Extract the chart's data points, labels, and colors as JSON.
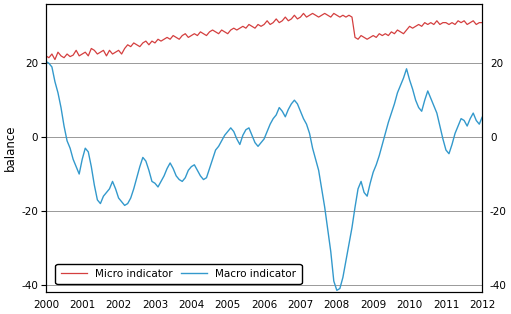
{
  "title": "",
  "ylabel_left": "balance",
  "micro_color": "#d43f3f",
  "macro_color": "#3399cc",
  "xlim": [
    2000.0,
    2012.0
  ],
  "ylim": [
    -42,
    36
  ],
  "yticks": [
    -40,
    -20,
    0,
    20
  ],
  "xticks": [
    2000,
    2001,
    2002,
    2003,
    2004,
    2005,
    2006,
    2007,
    2008,
    2009,
    2010,
    2011,
    2012
  ],
  "grid_color": "#999999",
  "legend_labels": [
    "Micro indicator",
    "Macro indicator"
  ],
  "micro_base": [
    22.0,
    21.5,
    22.5,
    21.0,
    23.0,
    22.0,
    21.5,
    22.5,
    21.8,
    22.2,
    23.5,
    22.0,
    22.5,
    23.0,
    22.0,
    24.0,
    23.5,
    22.5,
    23.0,
    23.5,
    22.0,
    23.5,
    22.5,
    23.0,
    23.5,
    22.5,
    24.0,
    25.0,
    24.5,
    25.5,
    25.0,
    24.5,
    25.5,
    26.0,
    25.0,
    26.0,
    25.5,
    26.5,
    26.0,
    26.5,
    27.0,
    26.5,
    27.5,
    27.0,
    26.5,
    27.5,
    28.0,
    27.0,
    27.5,
    28.0,
    27.5,
    28.5,
    28.0,
    27.5,
    28.5,
    29.0,
    28.5,
    28.0,
    29.0,
    28.5,
    28.0,
    29.0,
    29.5,
    29.0,
    29.5,
    30.0,
    29.5,
    30.5,
    30.0,
    29.5,
    30.5,
    30.0,
    30.5,
    31.5,
    30.5,
    31.0,
    32.0,
    31.0,
    31.5,
    32.5,
    31.5,
    32.0,
    33.0,
    32.0,
    32.5,
    33.5,
    32.5,
    33.0,
    33.5,
    33.0,
    32.5,
    33.0,
    33.5,
    33.0,
    32.5,
    33.5,
    33.0,
    32.5,
    33.0,
    32.5,
    33.0,
    32.5,
    27.0,
    26.5,
    27.5,
    27.0,
    26.5,
    27.0,
    27.5,
    27.0,
    28.0,
    27.5,
    28.0,
    27.5,
    28.5,
    28.0,
    29.0,
    28.5,
    28.0,
    29.0,
    30.0,
    29.5,
    30.0,
    30.5,
    30.0,
    31.0,
    30.5,
    31.0,
    30.5,
    31.5,
    30.5,
    31.0,
    31.0,
    30.5,
    31.0,
    30.5,
    31.5,
    31.0,
    31.5,
    30.5,
    31.0,
    31.5,
    30.5,
    31.0,
    31.0,
    31.5,
    30.5,
    31.0,
    31.5,
    30.5
  ],
  "macro_data": [
    20.5,
    20.0,
    19.0,
    15.0,
    12.0,
    8.0,
    3.0,
    -1.0,
    -3.0,
    -6.0,
    -8.0,
    -10.0,
    -6.0,
    -3.0,
    -4.0,
    -8.0,
    -13.0,
    -17.0,
    -18.0,
    -16.0,
    -15.0,
    -14.0,
    -12.0,
    -14.0,
    -16.5,
    -17.5,
    -18.5,
    -18.0,
    -16.5,
    -14.0,
    -11.0,
    -8.0,
    -5.5,
    -6.5,
    -9.0,
    -12.0,
    -12.5,
    -13.5,
    -12.0,
    -10.5,
    -8.5,
    -7.0,
    -8.5,
    -10.5,
    -11.5,
    -12.0,
    -11.0,
    -9.0,
    -8.0,
    -7.5,
    -9.0,
    -10.5,
    -11.5,
    -11.0,
    -8.5,
    -6.0,
    -3.5,
    -2.5,
    -1.0,
    0.5,
    1.5,
    2.5,
    1.5,
    -0.5,
    -2.0,
    0.5,
    2.0,
    2.5,
    0.5,
    -1.5,
    -2.5,
    -1.5,
    -0.5,
    1.5,
    3.5,
    5.0,
    6.0,
    8.0,
    7.0,
    5.5,
    7.5,
    9.0,
    10.0,
    9.0,
    7.0,
    5.0,
    3.5,
    1.0,
    -3.0,
    -6.0,
    -9.0,
    -14.0,
    -19.0,
    -25.0,
    -31.0,
    -39.0,
    -41.5,
    -41.0,
    -38.0,
    -33.5,
    -29.0,
    -24.5,
    -19.0,
    -14.0,
    -12.0,
    -15.0,
    -16.0,
    -12.5,
    -9.5,
    -7.5,
    -5.0,
    -2.0,
    1.0,
    4.0,
    6.5,
    9.0,
    12.0,
    14.0,
    16.0,
    18.5,
    15.5,
    13.0,
    10.0,
    8.0,
    7.0,
    10.0,
    12.5,
    10.5,
    8.5,
    6.5,
    3.0,
    -0.5,
    -3.5,
    -4.5,
    -2.0,
    1.0,
    3.0,
    5.0,
    4.5,
    3.0,
    5.0,
    6.5,
    4.5,
    3.5,
    5.5,
    4.5,
    2.5,
    4.0,
    5.5,
    3.5
  ]
}
